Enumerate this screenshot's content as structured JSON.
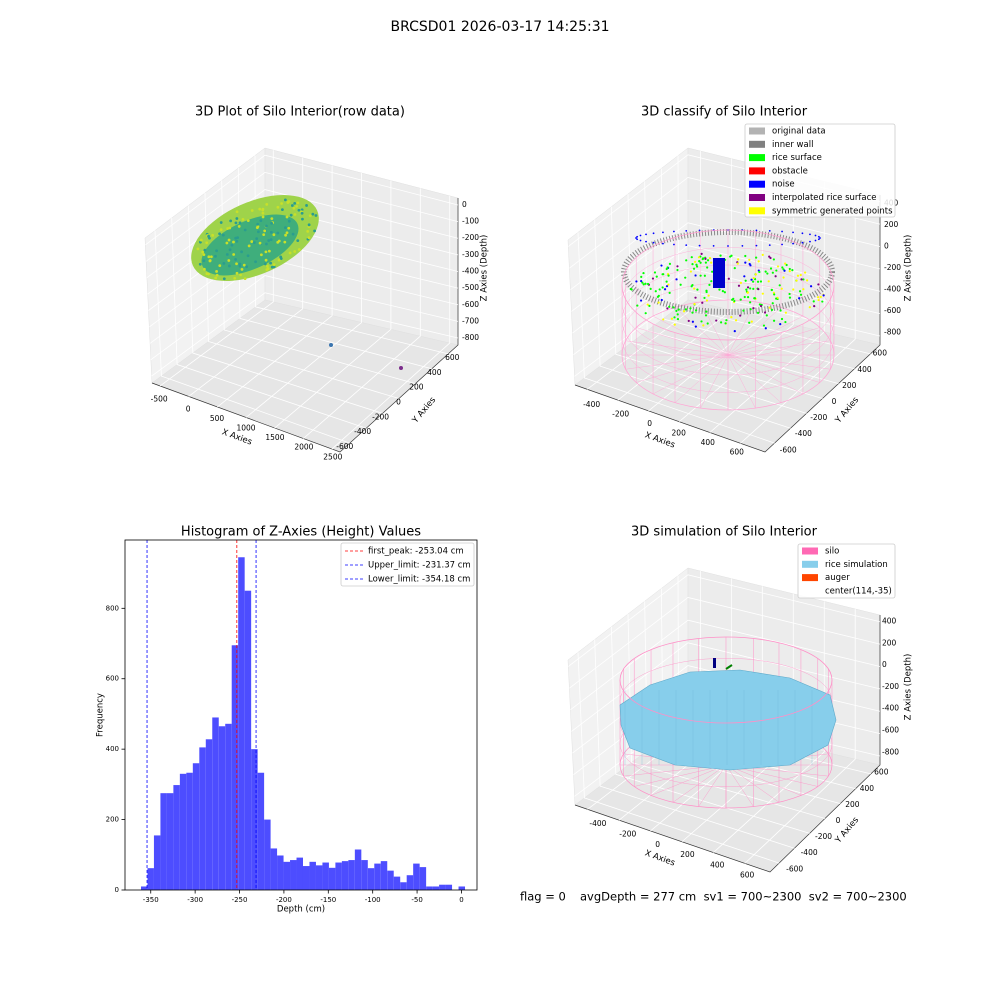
{
  "title": "BRCSD01 2026-03-17 14:25:31",
  "footer": [
    "flag = 0",
    "avgDepth = 277 cm  sv1 = 700~2300  sv2 = 700~2300"
  ],
  "chart_data": [
    {
      "type": "scatter3d",
      "title": "3D Plot of Silo Interior(row data)",
      "xlabel": "X Axies",
      "ylabel": "Y Axies",
      "zlabel": "Z Axies (Depth)",
      "xlim": [
        -641,
        2641
      ],
      "ylim": [
        -720,
        720
      ],
      "zlim": [
        -842,
        42
      ],
      "xticks": [
        -500,
        0,
        500,
        1000,
        1500,
        2000,
        2500
      ],
      "yticks": [
        -600,
        -400,
        -200,
        0,
        200,
        400,
        600
      ],
      "zticks": [
        0,
        -100,
        -200,
        -300,
        -400,
        -500,
        -600,
        -700,
        -800
      ]
    },
    {
      "type": "scatter3d",
      "title": "3D classify of Silo Interior",
      "xlabel": "X Axies",
      "ylabel": "Y Axies",
      "zlabel": "Z Axies (Depth)",
      "xlim": [
        -480,
        760
      ],
      "ylim": [
        -720,
        720
      ],
      "zlim": [
        -880,
        460
      ],
      "xticks": [
        -400,
        -200,
        0,
        200,
        400,
        600
      ],
      "yticks": [
        -600,
        -400,
        -200,
        0,
        200,
        400,
        600
      ],
      "zticks": [
        400,
        200,
        0,
        -200,
        -400,
        -600,
        -800
      ],
      "series": [
        {
          "name": "original data",
          "color": "#b3b3b3"
        },
        {
          "name": "inner wall",
          "color": "#808080"
        },
        {
          "name": "rice surface",
          "color": "#00ff00"
        },
        {
          "name": "obstacle",
          "color": "#ff0000"
        },
        {
          "name": "noise",
          "color": "#0000ff"
        },
        {
          "name": "interpolated rice surface",
          "color": "#800080"
        },
        {
          "name": "symmetric generated points",
          "color": "#ffff00"
        }
      ]
    },
    {
      "type": "histogram",
      "title": "Histogram of Z-Axies (Height) Values",
      "xlabel": "Depth (cm)",
      "ylabel": "Frequency",
      "color": "#4d4dff",
      "bins": [
        -361,
        -353.7,
        -346.4,
        -339.1,
        -331.8,
        -324.5,
        -317.2,
        -309.9,
        -302.6,
        -295.3,
        -288,
        -280.7,
        -273.4,
        -266.1,
        -258.8,
        -251.5,
        -244.2,
        -236.9,
        -229.6,
        -222.3,
        -215,
        -207.7,
        -200.4,
        -193.1,
        -185.8,
        -178.5,
        -171.2,
        -163.9,
        -156.6,
        -149.3,
        -142,
        -134.7,
        -127.4,
        -120.1,
        -112.8,
        -105.5,
        -98.2,
        -90.9,
        -83.6,
        -76.3,
        -69,
        -61.7,
        -54.4,
        -47.1,
        -39.8,
        -32.5,
        -25.2,
        -17.9,
        -10.6,
        -3.3,
        4
      ],
      "values": [
        10,
        62,
        155,
        275,
        275,
        298,
        330,
        333,
        360,
        405,
        428,
        490,
        465,
        472,
        695,
        945,
        850,
        400,
        333,
        200,
        118,
        98,
        80,
        85,
        92,
        68,
        80,
        70,
        78,
        63,
        78,
        82,
        85,
        115,
        85,
        62,
        75,
        82,
        55,
        38,
        22,
        42,
        75,
        65,
        10,
        10,
        15,
        15,
        0,
        10
      ],
      "xlim": [
        -379,
        17.5
      ],
      "ylim": [
        0,
        994
      ],
      "xticks": [
        -350,
        -300,
        -250,
        -200,
        -150,
        -100,
        -50,
        0
      ],
      "yticks": [
        0,
        200,
        400,
        600,
        800
      ],
      "lines": [
        {
          "label": "first_peak: -253.04 cm",
          "value": -253.04,
          "color": "#ff0000"
        },
        {
          "label": "Upper_limit: -231.37 cm",
          "value": -231.37,
          "color": "#0000ff"
        },
        {
          "label": "Lower_limit: -354.18 cm",
          "value": -354.18,
          "color": "#0000ff"
        }
      ]
    },
    {
      "type": "surface3d",
      "title": "3D simulation of Silo Interior",
      "xlabel": "X Axies",
      "ylabel": "Y Axies",
      "zlabel": "Z Axies (Depth)",
      "xlim": [
        -480,
        760
      ],
      "ylim": [
        -720,
        720
      ],
      "zlim": [
        -880,
        460
      ],
      "xticks": [
        -400,
        -200,
        0,
        200,
        400,
        600
      ],
      "yticks": [
        -600,
        -400,
        -200,
        0,
        200,
        400,
        600
      ],
      "zticks": [
        400,
        200,
        0,
        -200,
        -400,
        -600,
        -800
      ],
      "series": [
        {
          "name": "silo",
          "color": "#ff69b4"
        },
        {
          "name": "rice simulation",
          "color": "#87ceeb"
        },
        {
          "name": "auger",
          "color": "#ff4500"
        },
        {
          "name": "center(114,-35)",
          "color": "#ffffff"
        }
      ]
    }
  ]
}
